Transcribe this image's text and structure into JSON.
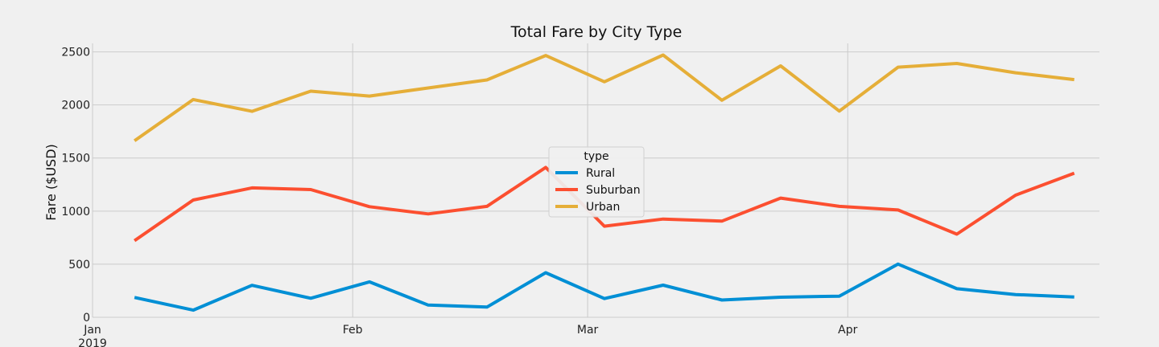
{
  "chart_data": {
    "type": "line",
    "title": "Total Fare by City Type",
    "xlabel": "",
    "ylabel": "Fare ($USD)",
    "ylim": [
      0,
      2580
    ],
    "yticks": [
      0,
      500,
      1000,
      1500,
      2000,
      2500
    ],
    "xlim": [
      "2019-01-01",
      "2019-05-01"
    ],
    "xticks": [
      {
        "date": "2019-01-01",
        "label": "Jan",
        "sublabel": "2019"
      },
      {
        "date": "2019-02-01",
        "label": "Feb",
        "sublabel": ""
      },
      {
        "date": "2019-03-01",
        "label": "Mar",
        "sublabel": ""
      },
      {
        "date": "2019-04-01",
        "label": "Apr",
        "sublabel": ""
      }
    ],
    "x": [
      "2019-01-06",
      "2019-01-13",
      "2019-01-20",
      "2019-01-27",
      "2019-02-03",
      "2019-02-10",
      "2019-02-17",
      "2019-02-24",
      "2019-03-03",
      "2019-03-10",
      "2019-03-17",
      "2019-03-24",
      "2019-03-31",
      "2019-04-07",
      "2019-04-14",
      "2019-04-21",
      "2019-04-28"
    ],
    "grid": true,
    "legend": {
      "title": "type",
      "placement": "center"
    },
    "series": [
      {
        "name": "Rural",
        "color": "#008fd5",
        "values": [
          187,
          67,
          301,
          179,
          334,
          115,
          96,
          420,
          176,
          303,
          163,
          189,
          199,
          501,
          269,
          214,
          191
        ]
      },
      {
        "name": "Suburban",
        "color": "#fc4f30",
        "values": [
          722,
          1105,
          1219,
          1203,
          1042,
          974,
          1045,
          1412,
          858,
          925,
          906,
          1123,
          1045,
          1011,
          783,
          1150,
          1357
        ]
      },
      {
        "name": "Urban",
        "color": "#e5ae38",
        "values": [
          1662,
          2051,
          1940,
          2130,
          2084,
          2160,
          2236,
          2466,
          2218,
          2470,
          2044,
          2368,
          1942,
          2356,
          2391,
          2303,
          2239
        ]
      }
    ]
  }
}
